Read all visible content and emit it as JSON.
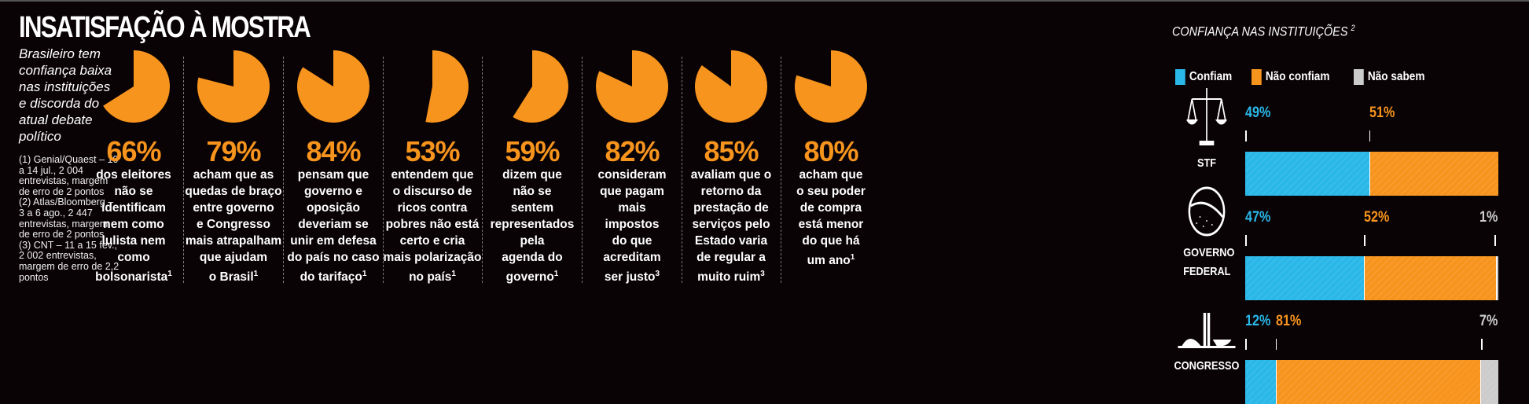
{
  "title": "INSATISFAÇÃO À MOSTRA",
  "subtitle": "Brasileiro tem confiança baixa nas instituições e discorda do atual debate político",
  "notes": [
    "(1) Genial/Quaest – 10 a 14 jul., 2 004 entrevistas, margem de erro de 2 pontos",
    "(2) Atlas/Bloomberg – 3 a 6 ago., 2 447 entrevistas, margem de erro de 2 pontos",
    "(3) CNT – 11 a 15 fev., 2 002 entrevistas, margem de erro de 2,2 pontos"
  ],
  "colors": {
    "orange": "#f7941d",
    "blue": "#29b8e8",
    "grey": "#cccccc",
    "background": "#0a0305"
  },
  "chart_data": [
    {
      "type": "pie",
      "items": [
        {
          "value": 66,
          "label": "66%",
          "lines": [
            "dos eleitores",
            "não se",
            "identificam",
            "nem como",
            "lulista nem",
            "como",
            "bolsonarista"
          ],
          "note": "1"
        },
        {
          "value": 79,
          "label": "79%",
          "lines": [
            "acham que as",
            "quedas de braço",
            "entre governo",
            "e Congresso",
            "mais atrapalham",
            "que ajudam",
            "o Brasil"
          ],
          "note": "1"
        },
        {
          "value": 84,
          "label": "84%",
          "lines": [
            "pensam que",
            "governo e",
            "oposição",
            "deveriam se",
            "unir em defesa",
            "do país no caso",
            "do tarifaço"
          ],
          "note": "1"
        },
        {
          "value": 53,
          "label": "53%",
          "lines": [
            "entendem que",
            "o discurso de",
            "ricos contra",
            "pobres não está",
            "certo e cria",
            "mais polarização",
            "no país"
          ],
          "note": "1"
        },
        {
          "value": 59,
          "label": "59%",
          "lines": [
            "dizem que",
            "não se",
            "sentem",
            "representados",
            "pela",
            "agenda do",
            "governo"
          ],
          "note": "1"
        },
        {
          "value": 82,
          "label": "82%",
          "lines": [
            "consideram",
            "que pagam",
            "mais",
            "impostos",
            "do que",
            "acreditam",
            "ser justo"
          ],
          "note": "3"
        },
        {
          "value": 85,
          "label": "85%",
          "lines": [
            "avaliam que o",
            "retorno da",
            "prestação de",
            "serviços pelo",
            "Estado varia",
            "de regular a",
            "muito ruim"
          ],
          "note": "3"
        },
        {
          "value": 80,
          "label": "80%",
          "lines": [
            "acham que",
            "o seu poder",
            "de compra",
            "está menor",
            "do que há",
            "um ano"
          ],
          "note": "1"
        }
      ]
    },
    {
      "type": "bar",
      "stacked": true,
      "orientation": "horizontal",
      "title": "CONFIANÇA NAS INSTITUIÇÕES",
      "title_note": "2",
      "legend": [
        "Confiam",
        "Não confiam",
        "Não sabem"
      ],
      "legend_placement": "top",
      "categories": [
        "STF",
        "GOVERNO FEDERAL",
        "CONGRESSO"
      ],
      "series": [
        {
          "name": "Confiam",
          "values": [
            49,
            47,
            12
          ],
          "labels": [
            "49%",
            "47%",
            "12%"
          ]
        },
        {
          "name": "Não confiam",
          "values": [
            51,
            52,
            81
          ],
          "labels": [
            "51%",
            "52%",
            "81%"
          ]
        },
        {
          "name": "Não sabem",
          "values": [
            0,
            1,
            7
          ],
          "labels": [
            "",
            "1%",
            "7%"
          ]
        }
      ],
      "icons": [
        "scales-of-justice-icon",
        "brazil-flag-globe-icon",
        "congress-building-icon"
      ]
    }
  ]
}
